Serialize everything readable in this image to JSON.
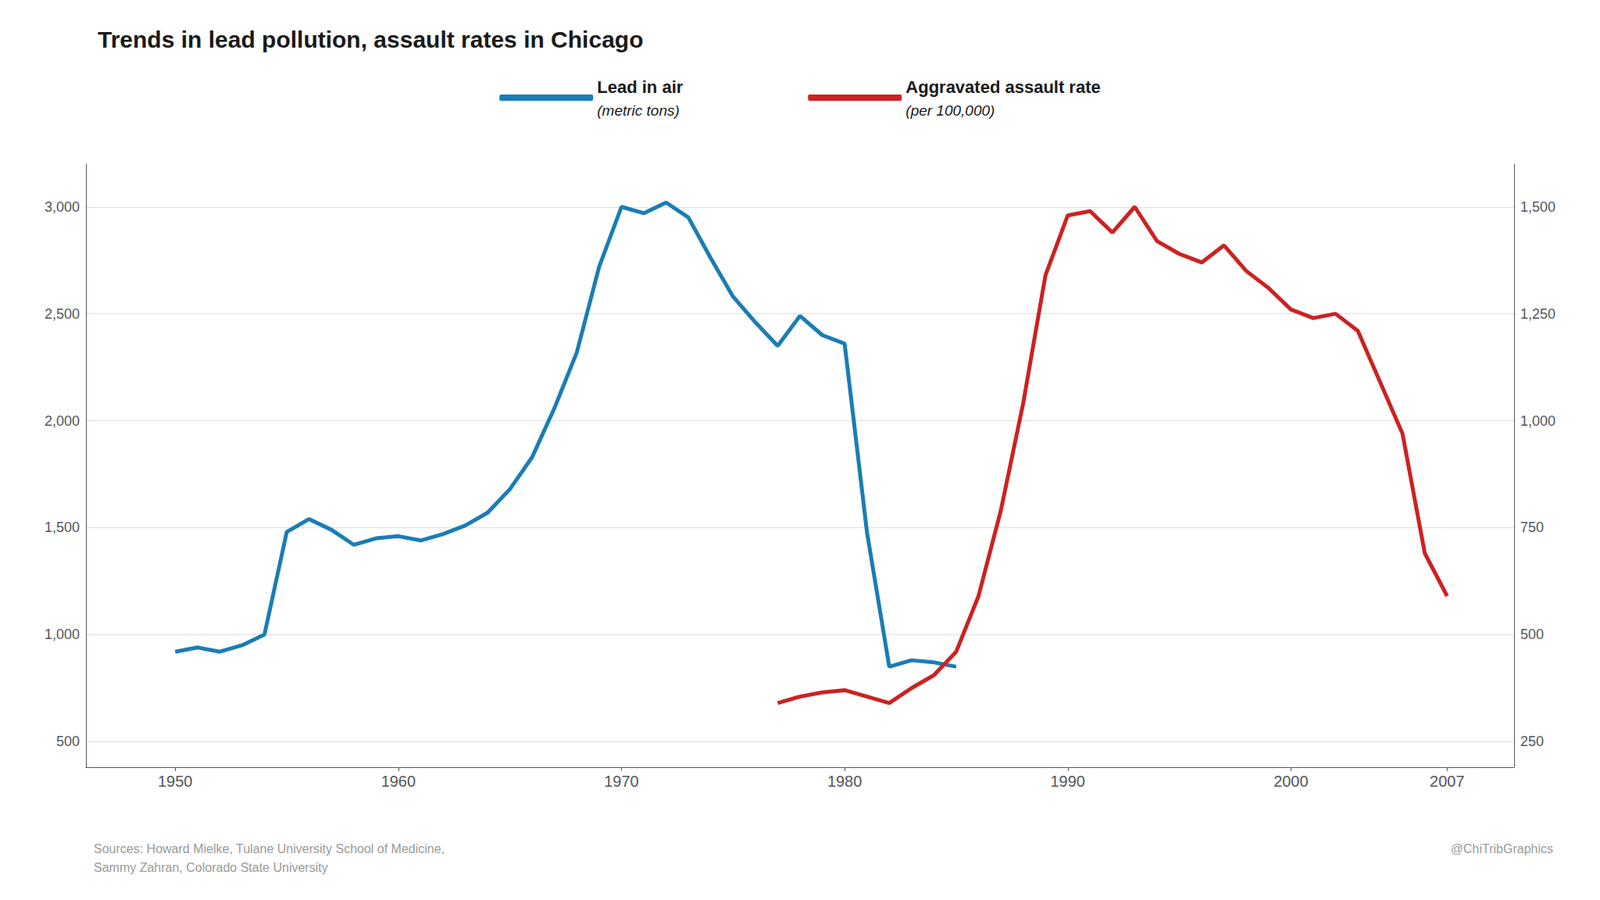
{
  "chart_data": {
    "type": "line",
    "title": "Trends in lead pollution, assault rates in Chicago",
    "series": [
      {
        "name": "Lead in air\n(metric tons)",
        "color": "#1a7db5",
        "x": [
          1950,
          1951,
          1952,
          1953,
          1954,
          1955,
          1956,
          1957,
          1958,
          1959,
          1960,
          1961,
          1962,
          1963,
          1964,
          1965,
          1966,
          1967,
          1968,
          1969,
          1970,
          1971,
          1972,
          1973,
          1974,
          1975,
          1976,
          1977,
          1978,
          1979,
          1980,
          1981,
          1982,
          1983,
          1984,
          1985
        ],
        "values": [
          920,
          940,
          920,
          950,
          1000,
          1480,
          1540,
          1490,
          1420,
          1450,
          1460,
          1440,
          1470,
          1510,
          1570,
          1680,
          1830,
          2060,
          2320,
          2720,
          3000,
          2970,
          3020,
          2950,
          2760,
          2580,
          2460,
          2350,
          2490,
          2400,
          2360,
          1480,
          850,
          880,
          870,
          850
        ]
      },
      {
        "name": "Aggravated assault rate\n(per 100,000)",
        "color": "#cc2222",
        "axis": "y2",
        "x": [
          1977,
          1978,
          1979,
          1980,
          1981,
          1982,
          1983,
          1984,
          1985,
          1986,
          1987,
          1988,
          1989,
          1990,
          1991,
          1992,
          1993,
          1994,
          1995,
          1996,
          1997,
          1998,
          1999,
          2000,
          2001,
          2002,
          2003,
          2004,
          2005,
          2006,
          2007
        ],
        "values": [
          340,
          355,
          365,
          370,
          355,
          340,
          375,
          405,
          460,
          590,
          790,
          1040,
          1340,
          1480,
          1490,
          1440,
          1500,
          1420,
          1390,
          1370,
          1410,
          1350,
          1310,
          1260,
          1240,
          1250,
          1210,
          1090,
          970,
          690,
          590
        ]
      }
    ],
    "xlim": [
      1946,
      2010
    ],
    "xticks": [
      1950,
      1960,
      1970,
      1980,
      1990,
      2000,
      2007
    ],
    "ylim": [
      380,
      3200
    ],
    "yticks": [
      500,
      {
        "value": 1000,
        "label": "1,000"
      },
      {
        "value": 1500,
        "label": "1,500"
      },
      {
        "value": 2000,
        "label": "2,000"
      },
      {
        "value": 2500,
        "label": "2,500"
      },
      {
        "value": 3000,
        "label": "3,000"
      }
    ],
    "y2lim": [
      190,
      1600
    ],
    "y2ticks": [
      250,
      500,
      750,
      {
        "value": 1000,
        "label": "1,000"
      },
      {
        "value": 1250,
        "label": "1,250"
      },
      {
        "value": 1500,
        "label": "1,500"
      }
    ],
    "grid": true,
    "legend": "top",
    "annotations": [
      "Sources: Howard Mielke, Tulane University School of Medicine,\nSammy Zahran, Colorado State University",
      "@ChiTribGraphics"
    ]
  }
}
